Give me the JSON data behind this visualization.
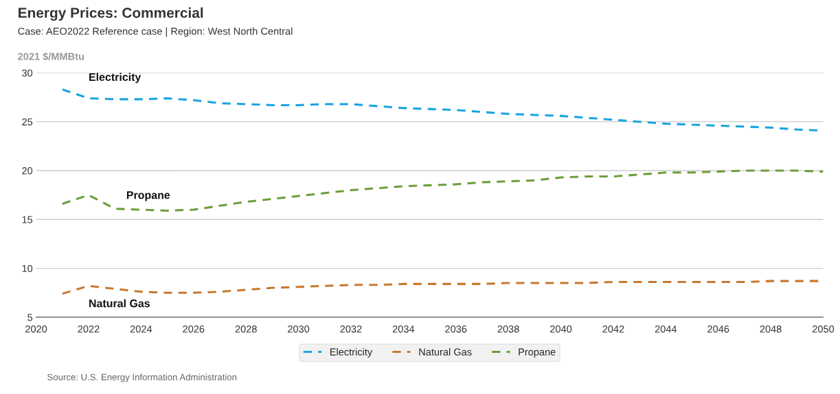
{
  "chart_data": {
    "type": "line",
    "title": "Energy Prices: Commercial",
    "subtitle": "Case: AEO2022 Reference case | Region: West North Central",
    "ylabel": "2021 $/MMBtu",
    "x": [
      2021,
      2022,
      2023,
      2024,
      2025,
      2026,
      2027,
      2028,
      2029,
      2030,
      2031,
      2032,
      2033,
      2034,
      2035,
      2036,
      2037,
      2038,
      2039,
      2040,
      2041,
      2042,
      2043,
      2044,
      2045,
      2046,
      2047,
      2048,
      2049,
      2050
    ],
    "series": [
      {
        "name": "Electricity",
        "color": "#1aa3e0",
        "values": [
          28.3,
          27.4,
          27.3,
          27.3,
          27.4,
          27.2,
          26.9,
          26.8,
          26.7,
          26.7,
          26.8,
          26.8,
          26.6,
          26.4,
          26.3,
          26.2,
          26.0,
          25.8,
          25.7,
          25.6,
          25.4,
          25.2,
          25.0,
          24.8,
          24.7,
          24.6,
          24.5,
          24.4,
          24.2,
          24.1
        ]
      },
      {
        "name": "Natural Gas",
        "color": "#c8782e",
        "values": [
          7.4,
          8.2,
          7.9,
          7.6,
          7.5,
          7.5,
          7.6,
          7.8,
          8.0,
          8.1,
          8.2,
          8.3,
          8.3,
          8.4,
          8.4,
          8.4,
          8.4,
          8.5,
          8.5,
          8.5,
          8.5,
          8.6,
          8.6,
          8.6,
          8.6,
          8.6,
          8.6,
          8.7,
          8.7,
          8.7
        ]
      },
      {
        "name": "Propane",
        "color": "#6b9e3a",
        "values": [
          16.6,
          17.5,
          16.1,
          16.0,
          15.9,
          16.0,
          16.4,
          16.8,
          17.1,
          17.4,
          17.7,
          18.0,
          18.2,
          18.4,
          18.5,
          18.6,
          18.8,
          18.9,
          19.0,
          19.3,
          19.4,
          19.4,
          19.6,
          19.8,
          19.8,
          19.9,
          20.0,
          20.0,
          20.0,
          19.9
        ]
      }
    ],
    "annotations": [
      "Source: U.S. Energy Information Administration"
    ],
    "xlim": [
      2020,
      2050
    ],
    "xticks": [
      2020,
      2022,
      2024,
      2026,
      2028,
      2030,
      2032,
      2034,
      2036,
      2038,
      2040,
      2042,
      2044,
      2046,
      2048,
      2050
    ],
    "ylim": [
      5,
      30
    ],
    "yticks": [
      5,
      10,
      15,
      20,
      25,
      30
    ],
    "grid": "y",
    "legend": "bottom",
    "line_style": "dashed",
    "marker": "none"
  }
}
